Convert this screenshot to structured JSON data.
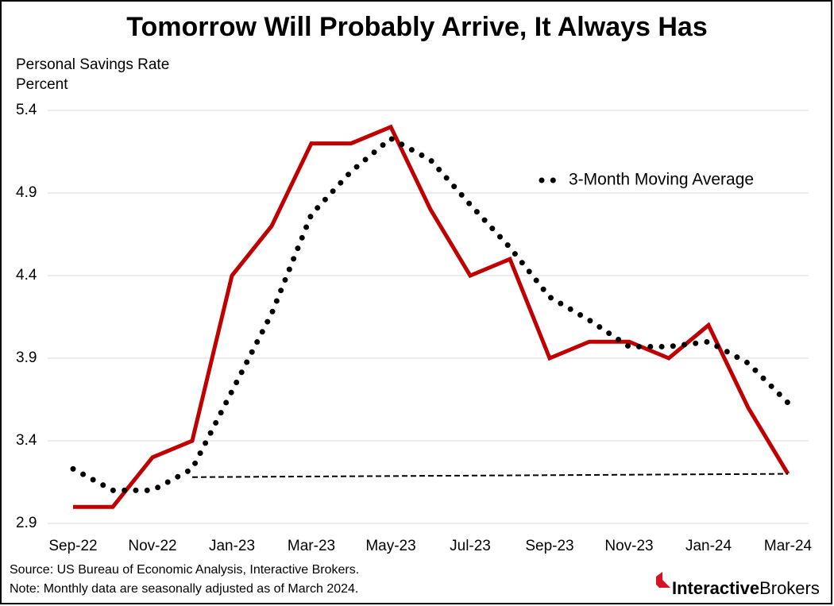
{
  "chart_data": {
    "type": "line",
    "title": "Tomorrow Will Probably Arrive, It Always Has",
    "y_label_lines": [
      "Personal Savings Rate",
      "Percent"
    ],
    "categories": [
      "Sep-22",
      null,
      "Nov-22",
      null,
      "Jan-23",
      null,
      "Mar-23",
      null,
      "May-23",
      null,
      "Jul-23",
      null,
      "Sep-23",
      null,
      "Nov-23",
      null,
      "Jan-24",
      null,
      "Mar-24"
    ],
    "series": [
      {
        "color": "#c00000",
        "style": "solid",
        "values": [
          3.0,
          3.0,
          3.3,
          3.4,
          4.4,
          4.7,
          5.2,
          5.2,
          5.3,
          4.8,
          4.4,
          4.5,
          3.9,
          4.0,
          4.0,
          3.9,
          4.1,
          3.6,
          3.2
        ]
      },
      {
        "name": "3-Month Moving Average",
        "color": "#000000",
        "style": "dotted",
        "values": [
          3.23,
          3.1,
          3.1,
          3.23,
          3.7,
          4.17,
          4.77,
          5.03,
          5.23,
          5.1,
          4.83,
          4.57,
          4.27,
          4.13,
          3.97,
          3.97,
          4.0,
          3.87,
          3.63
        ]
      }
    ],
    "dashed_line": {
      "color": "#000000",
      "x": [
        3,
        18
      ],
      "values": [
        3.18,
        3.2
      ]
    },
    "ylim": [
      2.9,
      5.4
    ],
    "yticks": [
      2.9,
      3.4,
      3.9,
      4.4,
      4.9,
      5.4
    ],
    "grid": true,
    "legend": "upper right",
    "notes": [
      "Source: US Bureau of Economic Analysis, Interactive Brokers.",
      "Note: Monthly data are seasonally adjusted as of March 2024."
    ],
    "logo": {
      "bold": "Interactive",
      "regular": "Brokers"
    }
  }
}
